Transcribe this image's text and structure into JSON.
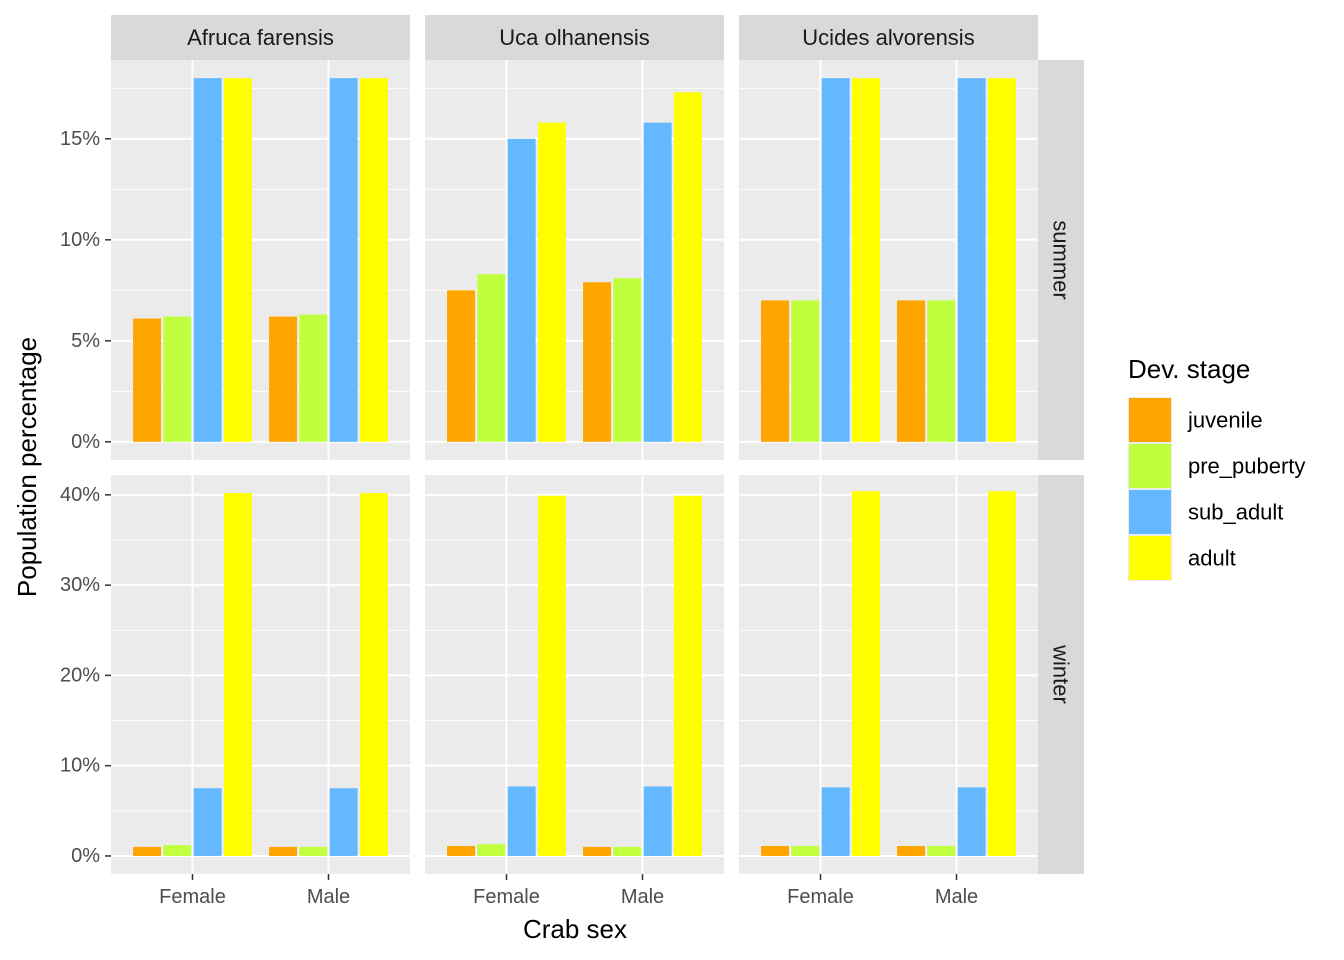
{
  "chart_data": {
    "type": "bar",
    "xlabel": "Crab sex",
    "ylabel": "Population percentage",
    "categories": [
      "Female",
      "Male"
    ],
    "facet_columns": [
      "Afruca farensis",
      "Uca olhanensis",
      "Ucides alvorensis"
    ],
    "facet_rows": [
      "summer",
      "winter"
    ],
    "legend": {
      "title": "Dev. stage",
      "placement": "right",
      "entries": [
        "juvenile",
        "pre_puberty",
        "sub_adult",
        "adult"
      ]
    },
    "colors": {
      "juvenile": "#FFA500",
      "pre_puberty": "#C0FF3E",
      "sub_adult": "#63B8FF",
      "adult": "#FFFF00",
      "panel_bg": "#EBEBEB",
      "strip_bg": "#D9D9D9",
      "grid": "#FFFFFF"
    },
    "grid": true,
    "rows": [
      {
        "name": "summer",
        "ylim": [
          -0.9,
          18.9
        ],
        "ticks": [
          0,
          5,
          10,
          15
        ],
        "tick_labels": [
          "0%",
          "5%",
          "10%",
          "15%"
        ],
        "panels": [
          {
            "facet": "Afruca farensis",
            "values": {
              "Female": [
                6.1,
                6.2,
                18.0,
                18.0
              ],
              "Male": [
                6.2,
                6.3,
                18.0,
                18.0
              ]
            }
          },
          {
            "facet": "Uca olhanensis",
            "values": {
              "Female": [
                7.5,
                8.3,
                15.0,
                15.8
              ],
              "Male": [
                7.9,
                8.1,
                15.8,
                17.3
              ]
            }
          },
          {
            "facet": "Ucides alvorensis",
            "values": {
              "Female": [
                7.0,
                7.0,
                18.0,
                18.0
              ],
              "Male": [
                7.0,
                7.0,
                18.0,
                18.0
              ]
            }
          }
        ]
      },
      {
        "name": "winter",
        "ylim": [
          -2.0,
          42.2
        ],
        "ticks": [
          0,
          10,
          20,
          30,
          40
        ],
        "tick_labels": [
          "0%",
          "10%",
          "20%",
          "30%",
          "40%"
        ],
        "panels": [
          {
            "facet": "Afruca farensis",
            "values": {
              "Female": [
                1.0,
                1.2,
                7.5,
                40.2
              ],
              "Male": [
                1.0,
                1.0,
                7.5,
                40.2
              ]
            }
          },
          {
            "facet": "Uca olhanensis",
            "values": {
              "Female": [
                1.1,
                1.3,
                7.7,
                39.9
              ],
              "Male": [
                1.0,
                1.0,
                7.7,
                39.9
              ]
            }
          },
          {
            "facet": "Ucides alvorensis",
            "values": {
              "Female": [
                1.1,
                1.1,
                7.6,
                40.4
              ],
              "Male": [
                1.1,
                1.1,
                7.6,
                40.4
              ]
            }
          }
        ]
      }
    ]
  }
}
